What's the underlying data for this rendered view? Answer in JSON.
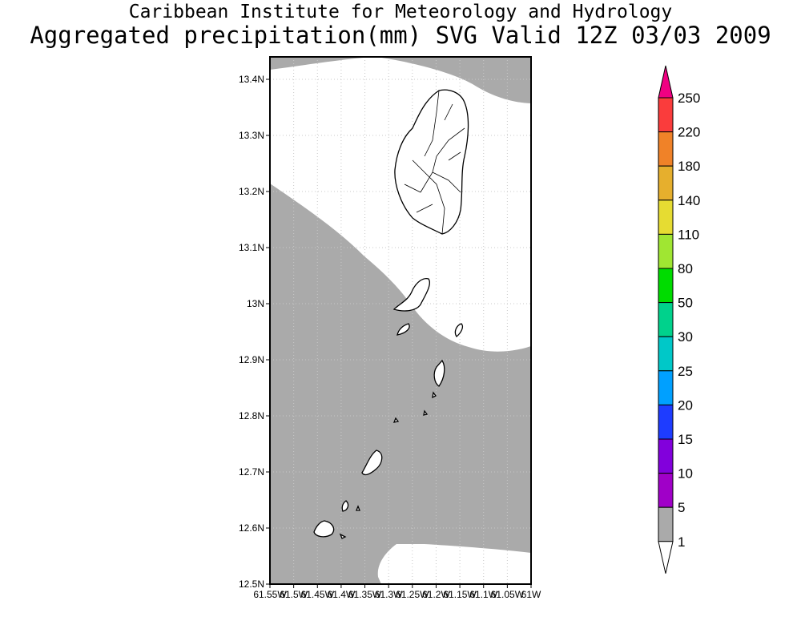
{
  "header": {
    "title": "Caribbean Institute for Meteorology and Hydrology",
    "subtitle": "Aggregated precipitation(mm) SVG Valid 12Z 03/03 2009"
  },
  "map": {
    "lat_labels": [
      "13.4N",
      "13.3N",
      "13.2N",
      "13.1N",
      "13N",
      "12.9N",
      "12.8N",
      "12.7N",
      "12.6N",
      "12.5N"
    ],
    "lon_labels": [
      "61.55W",
      "61.5W",
      "61.45W",
      "61.4W",
      "61.35W",
      "61.3W",
      "61.25W",
      "61.2W",
      "61.15W",
      "61.1W",
      "61.05W",
      "61W"
    ],
    "lat_values": [
      13.4,
      13.3,
      13.2,
      13.1,
      13.0,
      12.9,
      12.8,
      12.7,
      12.6,
      12.5
    ],
    "lon_values": [
      -61.55,
      -61.5,
      -61.45,
      -61.4,
      -61.35,
      -61.3,
      -61.25,
      -61.2,
      -61.15,
      -61.1,
      -61.05,
      -61.0
    ],
    "lat_range": [
      12.5,
      13.44
    ],
    "lon_range": [
      -61.55,
      -61.0
    ],
    "grid": true,
    "shaded_category": "1-5 mm",
    "land_outline_color": "#000000"
  },
  "legend": {
    "labels": [
      "1",
      "5",
      "10",
      "15",
      "20",
      "25",
      "30",
      "50",
      "80",
      "110",
      "140",
      "180",
      "220",
      "250"
    ],
    "colors": [
      "#aaaaaa",
      "#a000c8",
      "#8200dc",
      "#1e3cff",
      "#00a0ff",
      "#00c8c8",
      "#00d28c",
      "#00dc00",
      "#a0e632",
      "#e6dc32",
      "#e6af2d",
      "#f08228",
      "#fa3c3c",
      "#f00082"
    ],
    "low_color": "#ffffff",
    "high_color": "#f00082"
  }
}
